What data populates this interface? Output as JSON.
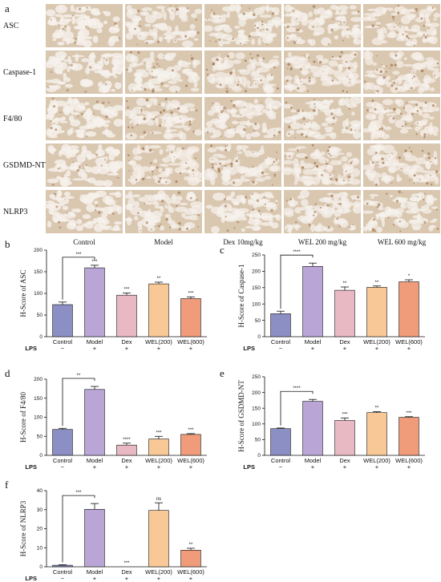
{
  "panel_a": {
    "letter": "a",
    "rows": [
      "ASC",
      "Caspase-1",
      "F4/80",
      "GSDMD-NT",
      "NLRP3"
    ],
    "columns": [
      "Control",
      "Model",
      "Dex 10mg/kg",
      "WEL 200 mg/kg",
      "WEL 600 mg/kg"
    ],
    "stain_density": [
      [
        0.35,
        0.55,
        0.6,
        0.5,
        0.65
      ],
      [
        0.3,
        0.6,
        0.75,
        0.7,
        0.7
      ],
      [
        0.4,
        0.75,
        0.55,
        0.6,
        0.65
      ],
      [
        0.35,
        0.65,
        0.75,
        0.7,
        0.7
      ],
      [
        0.35,
        0.55,
        0.45,
        0.55,
        0.6
      ]
    ]
  },
  "colors": {
    "Control": "#8b8fc4",
    "Model": "#b9a6d6",
    "Dex": "#e9b9c3",
    "WEL(200)": "#f8c896",
    "WEL(600)": "#f09b7a",
    "tissue": "#d9c7b0",
    "stain": "#9a6a3e",
    "background": "#f6f1ec"
  },
  "lps_row": {
    "label": "LPS",
    "signs": [
      "−",
      "+",
      "+",
      "+",
      "+"
    ]
  },
  "chart_data": [
    {
      "letter": "b",
      "type": "bar",
      "categories": [
        "Control",
        "Model",
        "Dex",
        "WEL(200)",
        "WEL(600)"
      ],
      "values": [
        74,
        159,
        96,
        122,
        88
      ],
      "errors": [
        6,
        6,
        5,
        4,
        4
      ],
      "ylabel": "H-Score of ASC",
      "ylim": [
        0,
        200
      ],
      "yticks": [
        "0",
        "50",
        "100",
        "150",
        "200"
      ],
      "significance": [
        "",
        "***",
        "***",
        "**",
        "***"
      ],
      "bracket": {
        "from": 0,
        "to": 1,
        "label": "***"
      }
    },
    {
      "letter": "c",
      "type": "bar",
      "categories": [
        "Control",
        "Model",
        "Dex",
        "WEL(200)",
        "WEL(600)"
      ],
      "values": [
        70,
        215,
        142,
        151,
        168
      ],
      "errors": [
        8,
        10,
        10,
        4,
        6
      ],
      "ylabel": "H-Score of Caspase-1",
      "ylim": [
        0,
        250
      ],
      "yticks": [
        "0",
        "50",
        "100",
        "150",
        "200",
        "250"
      ],
      "significance": [
        "",
        "",
        "**",
        "**",
        "*"
      ],
      "bracket": {
        "from": 0,
        "to": 1,
        "label": "****"
      }
    },
    {
      "letter": "d",
      "type": "bar",
      "categories": [
        "Control",
        "Model",
        "Dex",
        "WEL(200)",
        "WEL(600)"
      ],
      "values": [
        68,
        173,
        27,
        43,
        55
      ],
      "errors": [
        3,
        8,
        5,
        7,
        2
      ],
      "ylabel": "H-Score of F4/80",
      "ylim": [
        0,
        200
      ],
      "yticks": [
        "0",
        "50",
        "100",
        "150",
        "200"
      ],
      "significance": [
        "",
        "",
        "****",
        "***",
        "***"
      ],
      "bracket": {
        "from": 0,
        "to": 1,
        "label": "**"
      }
    },
    {
      "letter": "e",
      "type": "bar",
      "categories": [
        "Control",
        "Model",
        "Dex",
        "WEL(200)",
        "WEL(600)"
      ],
      "values": [
        85,
        172,
        111,
        136,
        121
      ],
      "errors": [
        2,
        6,
        8,
        3,
        2
      ],
      "ylabel": "H-Score of GSDMD-NT",
      "ylim": [
        0,
        250
      ],
      "yticks": [
        "0",
        "50",
        "100",
        "150",
        "200",
        "250"
      ],
      "significance": [
        "",
        "",
        "***",
        "**",
        "***"
      ],
      "bracket": {
        "from": 0,
        "to": 1,
        "label": "****"
      }
    },
    {
      "letter": "f",
      "type": "bar",
      "categories": [
        "Control",
        "Model",
        "Dex",
        "WEL(200)",
        "WEL(600)"
      ],
      "values": [
        0.8,
        30.2,
        0,
        29.6,
        8.7
      ],
      "errors": [
        0.3,
        3,
        0,
        4,
        1
      ],
      "ylabel": "H-Score of NLRP3",
      "ylim": [
        0,
        40
      ],
      "yticks": [
        "0",
        "10",
        "20",
        "30",
        "40"
      ],
      "significance": [
        "",
        "",
        "***",
        "ns",
        "**"
      ],
      "bracket": {
        "from": 0,
        "to": 1,
        "label": "***"
      }
    }
  ]
}
